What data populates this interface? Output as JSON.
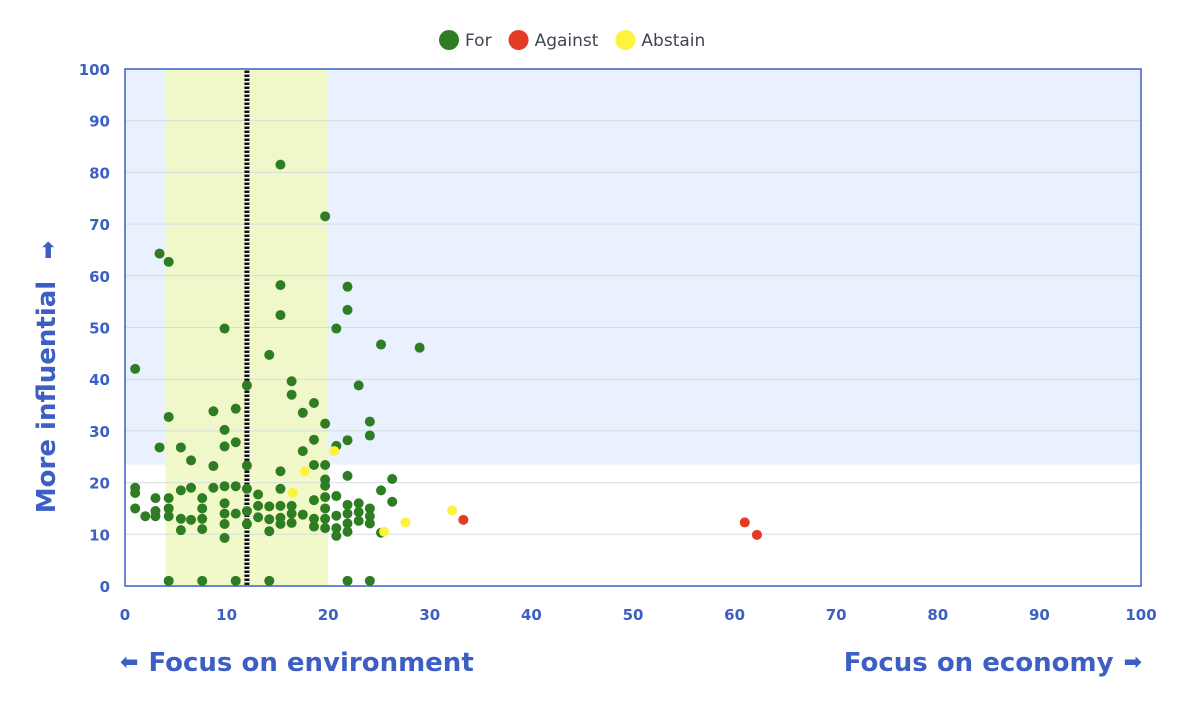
{
  "colors": {
    "accent": "#3d5fc4",
    "for": "#2e7d22",
    "against": "#e53a24",
    "abstain": "#fdf23d",
    "band_blue": "#e8f1fd",
    "band_yellow": "#f0f9c4"
  },
  "bottom_labels": {
    "left": "Focus on environment",
    "right": "Focus on economy",
    "left_icon": "arrow-left-icon",
    "right_icon": "arrow-right-icon"
  },
  "chart_data": {
    "type": "scatter",
    "title": "",
    "xlabel": "",
    "ylabel": "More influential",
    "xlim": [
      0,
      100
    ],
    "ylim": [
      0,
      100
    ],
    "xticks": [
      0,
      10,
      20,
      30,
      40,
      50,
      60,
      70,
      80,
      90,
      100
    ],
    "yticks": [
      0,
      10,
      20,
      30,
      40,
      50,
      60,
      70,
      80,
      90,
      100
    ],
    "grid": true,
    "legend_position": "top-center",
    "highlight_x_range": [
      4,
      20
    ],
    "highlight_y_above": 23.5,
    "reference_x": 12,
    "series": [
      {
        "name": "For",
        "color": "#2e7d22",
        "points": [
          [
            1,
            42
          ],
          [
            1,
            19
          ],
          [
            1,
            18
          ],
          [
            1,
            15
          ],
          [
            2,
            13.5
          ],
          [
            3,
            17
          ],
          [
            3,
            14.5
          ],
          [
            3,
            13.5
          ],
          [
            3.4,
            64.3
          ],
          [
            3.4,
            26.8
          ],
          [
            4.3,
            62.7
          ],
          [
            4.3,
            32.7
          ],
          [
            4.3,
            17
          ],
          [
            4.3,
            15
          ],
          [
            4.3,
            13.5
          ],
          [
            4.3,
            1
          ],
          [
            5.5,
            26.8
          ],
          [
            5.5,
            18.5
          ],
          [
            5.5,
            13
          ],
          [
            5.5,
            10.8
          ],
          [
            6.5,
            24.3
          ],
          [
            6.5,
            19
          ],
          [
            6.5,
            12.8
          ],
          [
            7.6,
            17
          ],
          [
            7.6,
            15
          ],
          [
            7.6,
            13
          ],
          [
            7.6,
            11
          ],
          [
            7.6,
            1
          ],
          [
            8.7,
            33.8
          ],
          [
            8.7,
            23.2
          ],
          [
            8.7,
            19
          ],
          [
            9.8,
            49.8
          ],
          [
            9.8,
            30.2
          ],
          [
            9.8,
            27
          ],
          [
            9.8,
            19.3
          ],
          [
            9.8,
            16
          ],
          [
            9.8,
            14
          ],
          [
            9.8,
            12
          ],
          [
            9.8,
            9.3
          ],
          [
            10.9,
            34.3
          ],
          [
            10.9,
            27.8
          ],
          [
            10.9,
            19.3
          ],
          [
            10.9,
            14
          ],
          [
            10.9,
            1
          ],
          [
            12,
            38.8
          ],
          [
            12,
            23.3
          ],
          [
            12,
            18.8
          ],
          [
            12,
            14.5
          ],
          [
            12,
            12
          ],
          [
            13.1,
            17.7
          ],
          [
            13.1,
            15.5
          ],
          [
            13.1,
            13.3
          ],
          [
            14.2,
            44.7
          ],
          [
            14.2,
            15.4
          ],
          [
            14.2,
            12.9
          ],
          [
            14.2,
            10.6
          ],
          [
            14.2,
            1
          ],
          [
            15.3,
            81.5
          ],
          [
            15.3,
            58.2
          ],
          [
            15.3,
            52.4
          ],
          [
            15.3,
            22.2
          ],
          [
            15.3,
            18.8
          ],
          [
            15.3,
            15.5
          ],
          [
            15.3,
            13.2
          ],
          [
            15.3,
            12
          ],
          [
            16.4,
            39.6
          ],
          [
            16.4,
            37
          ],
          [
            16.4,
            15.5
          ],
          [
            16.4,
            14
          ],
          [
            16.4,
            12.2
          ],
          [
            17.5,
            33.5
          ],
          [
            17.5,
            26.1
          ],
          [
            17.5,
            13.8
          ],
          [
            18.6,
            35.4
          ],
          [
            18.6,
            28.3
          ],
          [
            18.6,
            23.4
          ],
          [
            18.6,
            16.6
          ],
          [
            18.6,
            13
          ],
          [
            18.6,
            11.5
          ],
          [
            19.7,
            71.5
          ],
          [
            19.7,
            31.4
          ],
          [
            19.7,
            23.4
          ],
          [
            19.7,
            20.6
          ],
          [
            19.7,
            19.4
          ],
          [
            19.7,
            17.2
          ],
          [
            19.7,
            15
          ],
          [
            19.7,
            13
          ],
          [
            19.7,
            11.2
          ],
          [
            20.8,
            49.8
          ],
          [
            20.8,
            27.1
          ],
          [
            20.8,
            17.4
          ],
          [
            20.8,
            13.6
          ],
          [
            20.8,
            11.2
          ],
          [
            20.8,
            9.7
          ],
          [
            21.9,
            57.9
          ],
          [
            21.9,
            53.4
          ],
          [
            21.9,
            28.2
          ],
          [
            21.9,
            21.3
          ],
          [
            21.9,
            15.7
          ],
          [
            21.9,
            14
          ],
          [
            21.9,
            12.1
          ],
          [
            21.9,
            10.5
          ],
          [
            21.9,
            1
          ],
          [
            23,
            38.8
          ],
          [
            23,
            16
          ],
          [
            23,
            14.3
          ],
          [
            23,
            12.6
          ],
          [
            24.1,
            31.8
          ],
          [
            24.1,
            29.1
          ],
          [
            24.1,
            15
          ],
          [
            24.1,
            13.5
          ],
          [
            24.1,
            12.1
          ],
          [
            24.1,
            1
          ],
          [
            25.2,
            46.7
          ],
          [
            25.2,
            18.5
          ],
          [
            25.2,
            10.3
          ],
          [
            26.3,
            20.7
          ],
          [
            26.3,
            16.3
          ],
          [
            29,
            46.1
          ]
        ]
      },
      {
        "name": "Against",
        "color": "#e53a24",
        "points": [
          [
            33.3,
            12.8
          ],
          [
            61,
            12.3
          ],
          [
            62.2,
            9.9
          ]
        ]
      },
      {
        "name": "Abstain",
        "color": "#fdf23d",
        "points": [
          [
            16.5,
            18
          ],
          [
            17.7,
            22.2
          ],
          [
            20.6,
            26.1
          ],
          [
            25.5,
            10.5
          ],
          [
            27.6,
            12.3
          ],
          [
            32.2,
            14.6
          ]
        ]
      }
    ]
  }
}
